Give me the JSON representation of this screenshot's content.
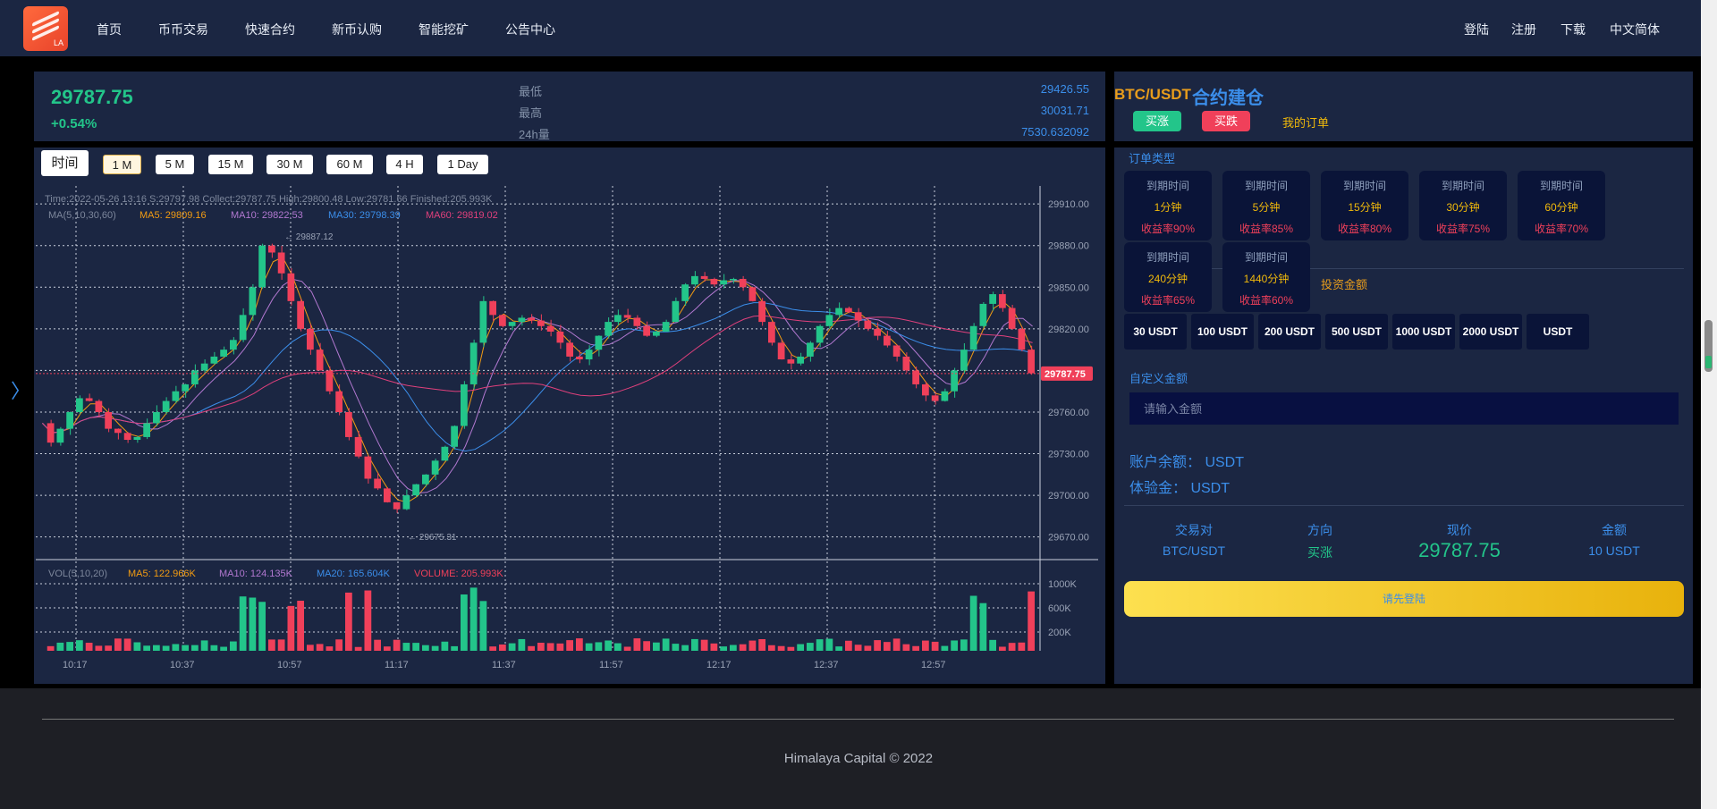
{
  "nav": {
    "logo_text": "LA",
    "left": [
      "首页",
      "币币交易",
      "快速合约",
      "新币认购",
      "智能挖矿",
      "公告中心"
    ],
    "right": [
      "登陆",
      "注册",
      "下载",
      "中文简体"
    ]
  },
  "ticker": {
    "price": "29787.75",
    "change": "+0.54%",
    "stats": [
      {
        "label": "最低",
        "value": "29426.55"
      },
      {
        "label": "最高",
        "value": "30031.71"
      },
      {
        "label": "24h量",
        "value": "7530.632092"
      }
    ]
  },
  "timeframes": [
    "时间",
    "1 M",
    "5 M",
    "15 M",
    "30 M",
    "60 M",
    "4 H",
    "1 Day"
  ],
  "chart_info": {
    "line1": "Time:2022-05-26 13:16   S:29797.98   Collect:29787.75   High:29800.48   Low:29781.66   Finished:205.993K",
    "ma_label": "MA(5,10,30,60)",
    "ma5": "MA5: 29809.16",
    "ma10": "MA10: 29822.53",
    "ma30": "MA30: 29798.39",
    "ma60": "MA60: 29819.02",
    "high_mark": "29887.12",
    "low_mark": "29675.31",
    "vol_label": "VOL(5,10,20)",
    "vol_ma5": "MA5: 122.966K",
    "vol_ma10": "MA10: 124.135K",
    "vol_ma20": "MA20: 165.604K",
    "vol_volume": "VOLUME: 205.993K",
    "current_tag": "29787.75"
  },
  "chart_data": {
    "type": "candlestick",
    "y_ticks": [
      "29910.00",
      "29880.00",
      "29850.00",
      "29820.00",
      "29790.00",
      "29760.00",
      "29730.00",
      "29700.00",
      "29670.00"
    ],
    "ylim": [
      29664,
      29923
    ],
    "vol_ticks": [
      "1000K",
      "600K",
      "200K"
    ],
    "x_ticks": [
      "10:17",
      "10:37",
      "10:57",
      "11:17",
      "11:37",
      "11:57",
      "12:17",
      "12:37",
      "12:57"
    ],
    "close_path": [
      29752,
      29738,
      29748,
      29760,
      29770,
      29768,
      29760,
      29748,
      29745,
      29740,
      29742,
      29752,
      29760,
      29768,
      29775,
      29780,
      29790,
      29795,
      29800,
      29805,
      29812,
      29830,
      29850,
      29880,
      29875,
      29860,
      29840,
      29820,
      29805,
      29790,
      29775,
      29760,
      29742,
      29728,
      29712,
      29705,
      29695,
      29690,
      29700,
      29708,
      29715,
      29725,
      29735,
      29750,
      29780,
      29810,
      29840,
      29830,
      29822,
      29825,
      29828,
      29826,
      29822,
      29818,
      29810,
      29800,
      29798,
      29805,
      29815,
      29825,
      29830,
      29828,
      29822,
      29815,
      29818,
      29825,
      29840,
      29852,
      29858,
      29856,
      29852,
      29855,
      29856,
      29850,
      29840,
      29825,
      29810,
      29798,
      29795,
      29800,
      29810,
      29822,
      29830,
      29835,
      29832,
      29826,
      29820,
      29815,
      29808,
      29800,
      29790,
      29780,
      29772,
      29768,
      29775,
      29790,
      29805,
      29822,
      29838,
      29845,
      29835,
      29820,
      29805,
      29788
    ]
  },
  "order_panel": {
    "pair": "BTC/USDT",
    "title": "合约建仓",
    "buy_up": "买涨",
    "buy_down": "买跌",
    "my_orders": "我的订单",
    "order_type_label": "订单类型",
    "cards": [
      {
        "label": "到期时间",
        "time": "1分钟",
        "rate": "收益率90%"
      },
      {
        "label": "到期时间",
        "time": "5分钟",
        "rate": "收益率85%"
      },
      {
        "label": "到期时间",
        "time": "15分钟",
        "rate": "收益率80%"
      },
      {
        "label": "到期时间",
        "time": "30分钟",
        "rate": "收益率75%"
      },
      {
        "label": "到期时间",
        "time": "60分钟",
        "rate": "收益率70%"
      },
      {
        "label": "到期时间",
        "time": "240分钟",
        "rate": "收益率65%"
      },
      {
        "label": "到期时间",
        "time": "1440分钟",
        "rate": "收益率60%"
      }
    ],
    "invest_label": "投资金额",
    "amounts": [
      "30 USDT",
      "100 USDT",
      "200 USDT",
      "500 USDT",
      "1000 USDT",
      "2000 USDT",
      "USDT"
    ],
    "custom_label": "自定义金额",
    "input_placeholder": "请输入金额",
    "balance": "账户余额： USDT",
    "trial": "体验金： USDT",
    "summary_headers": [
      "交易对",
      "方向",
      "现价",
      "金额"
    ],
    "summary_values": [
      "BTC/USDT",
      "买涨",
      "29787.75",
      "10 USDT"
    ],
    "login_button": "请先登陆"
  },
  "footer": "Himalaya Capital © 2022",
  "colors": {
    "up": "#23c58a",
    "down": "#f0405a",
    "accent": "#3b8eea",
    "gold": "#f0b90b",
    "panel": "#1b2642"
  }
}
